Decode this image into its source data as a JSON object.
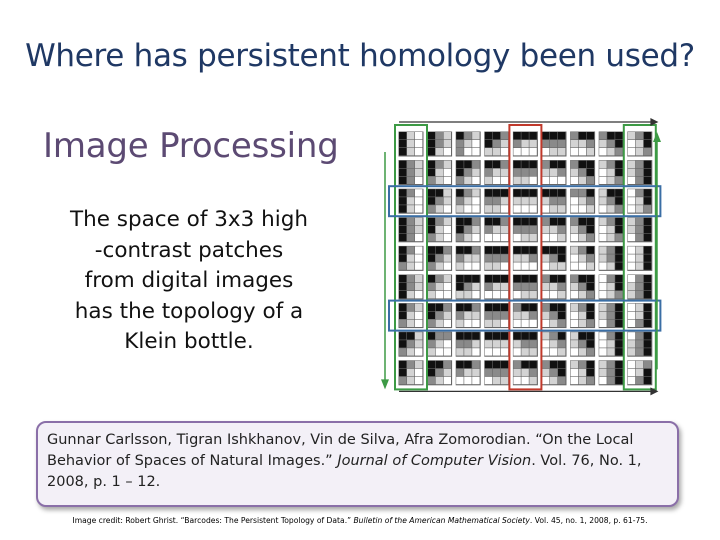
{
  "slide": {
    "title": "Where has persistent homology been used?",
    "subtitle": "Image Processing",
    "body_lines": [
      "The space of 3x3 high",
      "-contrast patches",
      "from digital images",
      "has the topology of a",
      "Klein bottle."
    ]
  },
  "citation": {
    "authors": "Gunnar Carlsson, Tigran Ishkhanov, Vin de Silva, Afra Zomorodian. ",
    "title": "“On the Local Behavior of Spaces of Natural Images.” ",
    "journal": "Journal of Computer Vision",
    "details": ". Vol. 76, No. 1, 2008, p. 1 – 12."
  },
  "credit": {
    "prefix": "Image credit: Robert Ghrist. “Barcodes: The Persistent Topology of Data.” ",
    "journal": "Bulletin of the American Mathematical Society",
    "details": ". Vol. 45, no. 1, 2008, p. 61-75."
  },
  "figure": {
    "rows": 9,
    "cols": 9,
    "colors": {
      "dark": "#111111",
      "mid": "#8a8a8a",
      "light": "#d3d3d3",
      "white": "#ffffff",
      "green": "#3d9a45",
      "red": "#c0392b",
      "blue": "#3a6ea5",
      "arrow": "#333333"
    }
  }
}
